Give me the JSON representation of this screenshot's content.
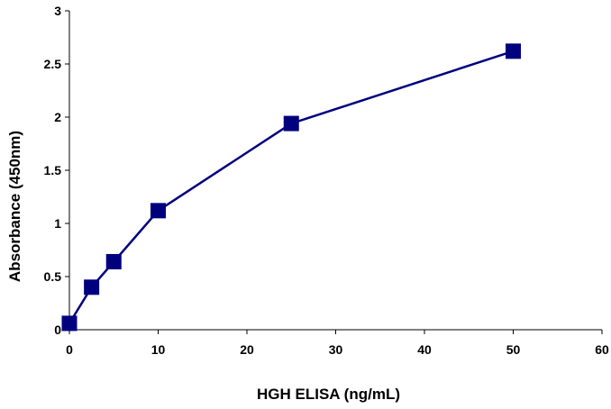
{
  "chart_data": {
    "type": "line",
    "title": "",
    "xlabel": "HGH ELISA (ng/mL)",
    "ylabel": "Absorbance (450nm)",
    "xlim": [
      0,
      60
    ],
    "ylim": [
      0,
      3
    ],
    "xticks": [
      0,
      10,
      20,
      30,
      40,
      50,
      60
    ],
    "yticks": [
      0,
      0.5,
      1,
      1.5,
      2,
      2.5,
      3
    ],
    "xtick_labels": [
      "0",
      "10",
      "20",
      "30",
      "40",
      "50",
      "60"
    ],
    "ytick_labels": [
      "0",
      "0.5",
      "1",
      "1.5",
      "2",
      "2.5",
      "3"
    ],
    "grid": false,
    "legend": "none",
    "series": [
      {
        "x": [
          0,
          2.5,
          5,
          10,
          25,
          50
        ],
        "y": [
          0.06,
          0.4,
          0.64,
          1.12,
          1.94,
          2.62
        ],
        "color": "#00007F",
        "marker": "square"
      }
    ]
  }
}
